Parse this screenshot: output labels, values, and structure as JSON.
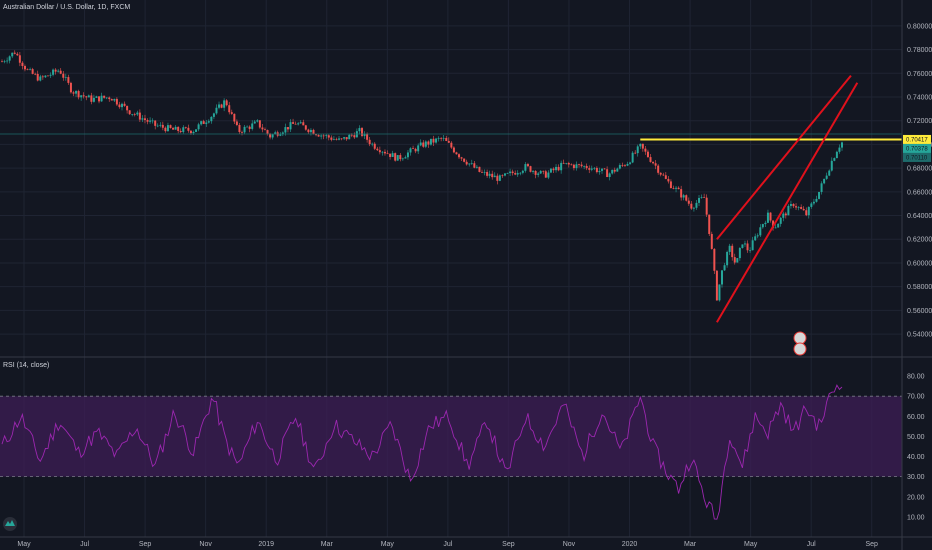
{
  "header": {
    "symbol_title": "Australian Dollar / U.S. Dollar, 1D, FXCM"
  },
  "rsi_panel": {
    "title": "RSI (14, close)",
    "overbought": 70,
    "oversold": 30,
    "ylim": [
      0,
      85
    ],
    "ticks": [
      "80.00",
      "70.00",
      "60.00",
      "50.00",
      "40.00",
      "30.00",
      "20.00",
      "10.00"
    ]
  },
  "price_tags": {
    "horizontal_level": "0.70417",
    "last_close": "0.70378",
    "secondary": "0.70110"
  },
  "colors": {
    "background": "#131722",
    "candle_up": "#26a69a",
    "candle_down": "#ef5350",
    "resistance_line": "#ffeb3b",
    "wedge_lines": "#e0111c",
    "rsi_line": "#9c27b0",
    "rsi_band": "#3d1e56",
    "teal_hline": "#1e6b6b"
  },
  "chart_data": {
    "type": "candlestick",
    "ylim": [
      0.535,
      0.81
    ],
    "y_ticks": [
      "0.80000",
      "0.78000",
      "0.76000",
      "0.74000",
      "0.72000",
      "0.70000",
      "0.68000",
      "0.66000",
      "0.64000",
      "0.62000",
      "0.60000",
      "0.58000",
      "0.56000",
      "0.54000"
    ],
    "x_ticks": [
      "May",
      "Jul",
      "Sep",
      "Nov",
      "2019",
      "Mar",
      "May",
      "Jul",
      "Sep",
      "Nov",
      "2020",
      "Mar",
      "May",
      "Jul",
      "Sep"
    ],
    "price_path": [
      [
        0,
        0.77
      ],
      [
        2,
        0.778
      ],
      [
        4,
        0.762
      ],
      [
        6,
        0.755
      ],
      [
        9,
        0.763
      ],
      [
        11,
        0.745
      ],
      [
        14,
        0.738
      ],
      [
        17,
        0.74
      ],
      [
        20,
        0.728
      ],
      [
        24,
        0.716
      ],
      [
        27,
        0.712
      ],
      [
        30,
        0.712
      ],
      [
        33,
        0.725
      ],
      [
        35,
        0.737
      ],
      [
        37,
        0.711
      ],
      [
        40,
        0.718
      ],
      [
        42,
        0.707
      ],
      [
        46,
        0.718
      ],
      [
        50,
        0.708
      ],
      [
        53,
        0.703
      ],
      [
        56,
        0.711
      ],
      [
        58,
        0.7
      ],
      [
        62,
        0.688
      ],
      [
        66,
        0.7
      ],
      [
        69,
        0.705
      ],
      [
        72,
        0.689
      ],
      [
        75,
        0.676
      ],
      [
        78,
        0.671
      ],
      [
        82,
        0.681
      ],
      [
        85,
        0.674
      ],
      [
        88,
        0.683
      ],
      [
        92,
        0.681
      ],
      [
        95,
        0.675
      ],
      [
        98,
        0.685
      ],
      [
        100,
        0.698
      ],
      [
        102,
        0.685
      ],
      [
        104,
        0.67
      ],
      [
        106,
        0.66
      ],
      [
        108,
        0.648
      ],
      [
        110,
        0.655
      ],
      [
        111,
        0.62
      ],
      [
        112,
        0.571
      ],
      [
        113,
        0.598
      ],
      [
        114,
        0.612
      ],
      [
        115,
        0.598
      ],
      [
        116,
        0.618
      ],
      [
        117,
        0.61
      ],
      [
        119,
        0.632
      ],
      [
        120,
        0.64
      ],
      [
        121,
        0.63
      ],
      [
        123,
        0.644
      ],
      [
        124,
        0.65
      ],
      [
        126,
        0.641
      ],
      [
        128,
        0.66
      ],
      [
        130,
        0.686
      ],
      [
        131,
        0.698
      ],
      [
        132,
        0.704
      ]
    ],
    "horizontal_level": 0.70417,
    "channel_upper": [
      [
        112,
        0.62
      ],
      [
        133,
        0.758
      ]
    ],
    "channel_lower": [
      [
        112,
        0.55
      ],
      [
        134,
        0.752
      ]
    ],
    "rsi_path": [
      [
        0,
        45
      ],
      [
        3,
        60
      ],
      [
        6,
        38
      ],
      [
        9,
        58
      ],
      [
        12,
        42
      ],
      [
        15,
        52
      ],
      [
        18,
        40
      ],
      [
        21,
        55
      ],
      [
        24,
        35
      ],
      [
        27,
        62
      ],
      [
        30,
        42
      ],
      [
        33,
        70
      ],
      [
        35,
        48
      ],
      [
        37,
        35
      ],
      [
        40,
        58
      ],
      [
        43,
        38
      ],
      [
        46,
        60
      ],
      [
        49,
        32
      ],
      [
        52,
        56
      ],
      [
        55,
        48
      ],
      [
        58,
        40
      ],
      [
        61,
        56
      ],
      [
        64,
        28
      ],
      [
        67,
        55
      ],
      [
        70,
        60
      ],
      [
        73,
        35
      ],
      [
        76,
        58
      ],
      [
        79,
        30
      ],
      [
        82,
        60
      ],
      [
        85,
        45
      ],
      [
        88,
        66
      ],
      [
        91,
        40
      ],
      [
        94,
        63
      ],
      [
        97,
        42
      ],
      [
        100,
        70
      ],
      [
        102,
        45
      ],
      [
        104,
        33
      ],
      [
        106,
        24
      ],
      [
        108,
        40
      ],
      [
        110,
        20
      ],
      [
        112,
        8
      ],
      [
        114,
        52
      ],
      [
        116,
        35
      ],
      [
        118,
        60
      ],
      [
        120,
        52
      ],
      [
        122,
        66
      ],
      [
        124,
        52
      ],
      [
        126,
        64
      ],
      [
        128,
        55
      ],
      [
        130,
        72
      ],
      [
        132,
        80
      ]
    ]
  }
}
